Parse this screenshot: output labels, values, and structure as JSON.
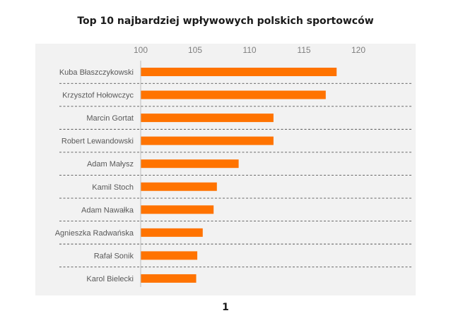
{
  "page": {
    "page_number": "1"
  },
  "chart_data": {
    "type": "bar",
    "orientation": "horizontal",
    "title": "Top 10 najbardziej wpływowych polskich sportowców",
    "xlabel": "",
    "ylabel": "",
    "categories": [
      "Kuba Błaszczykowski",
      "Krzysztof Hołowczyc",
      "Marcin Gortat",
      "Robert Lewandowski",
      "Adam Małysz",
      "Kamil Stoch",
      "Adam Nawałka",
      "Agnieszka Radwańska",
      "Rafał Sonik",
      "Karol Bielecki"
    ],
    "values": [
      118.0,
      117.0,
      112.2,
      112.2,
      109.0,
      107.0,
      106.7,
      105.7,
      105.2,
      105.1
    ],
    "xlim": [
      100,
      124
    ],
    "xticks": [
      100,
      105,
      110,
      115,
      120
    ],
    "x_axis_position": "top",
    "grid": false,
    "separators": "dashed",
    "legend": "none",
    "bar_color": "#ff7300",
    "separator_color": "#555555",
    "axis_color": "#bfbfbf",
    "panel_background": "#f2f2f2"
  }
}
